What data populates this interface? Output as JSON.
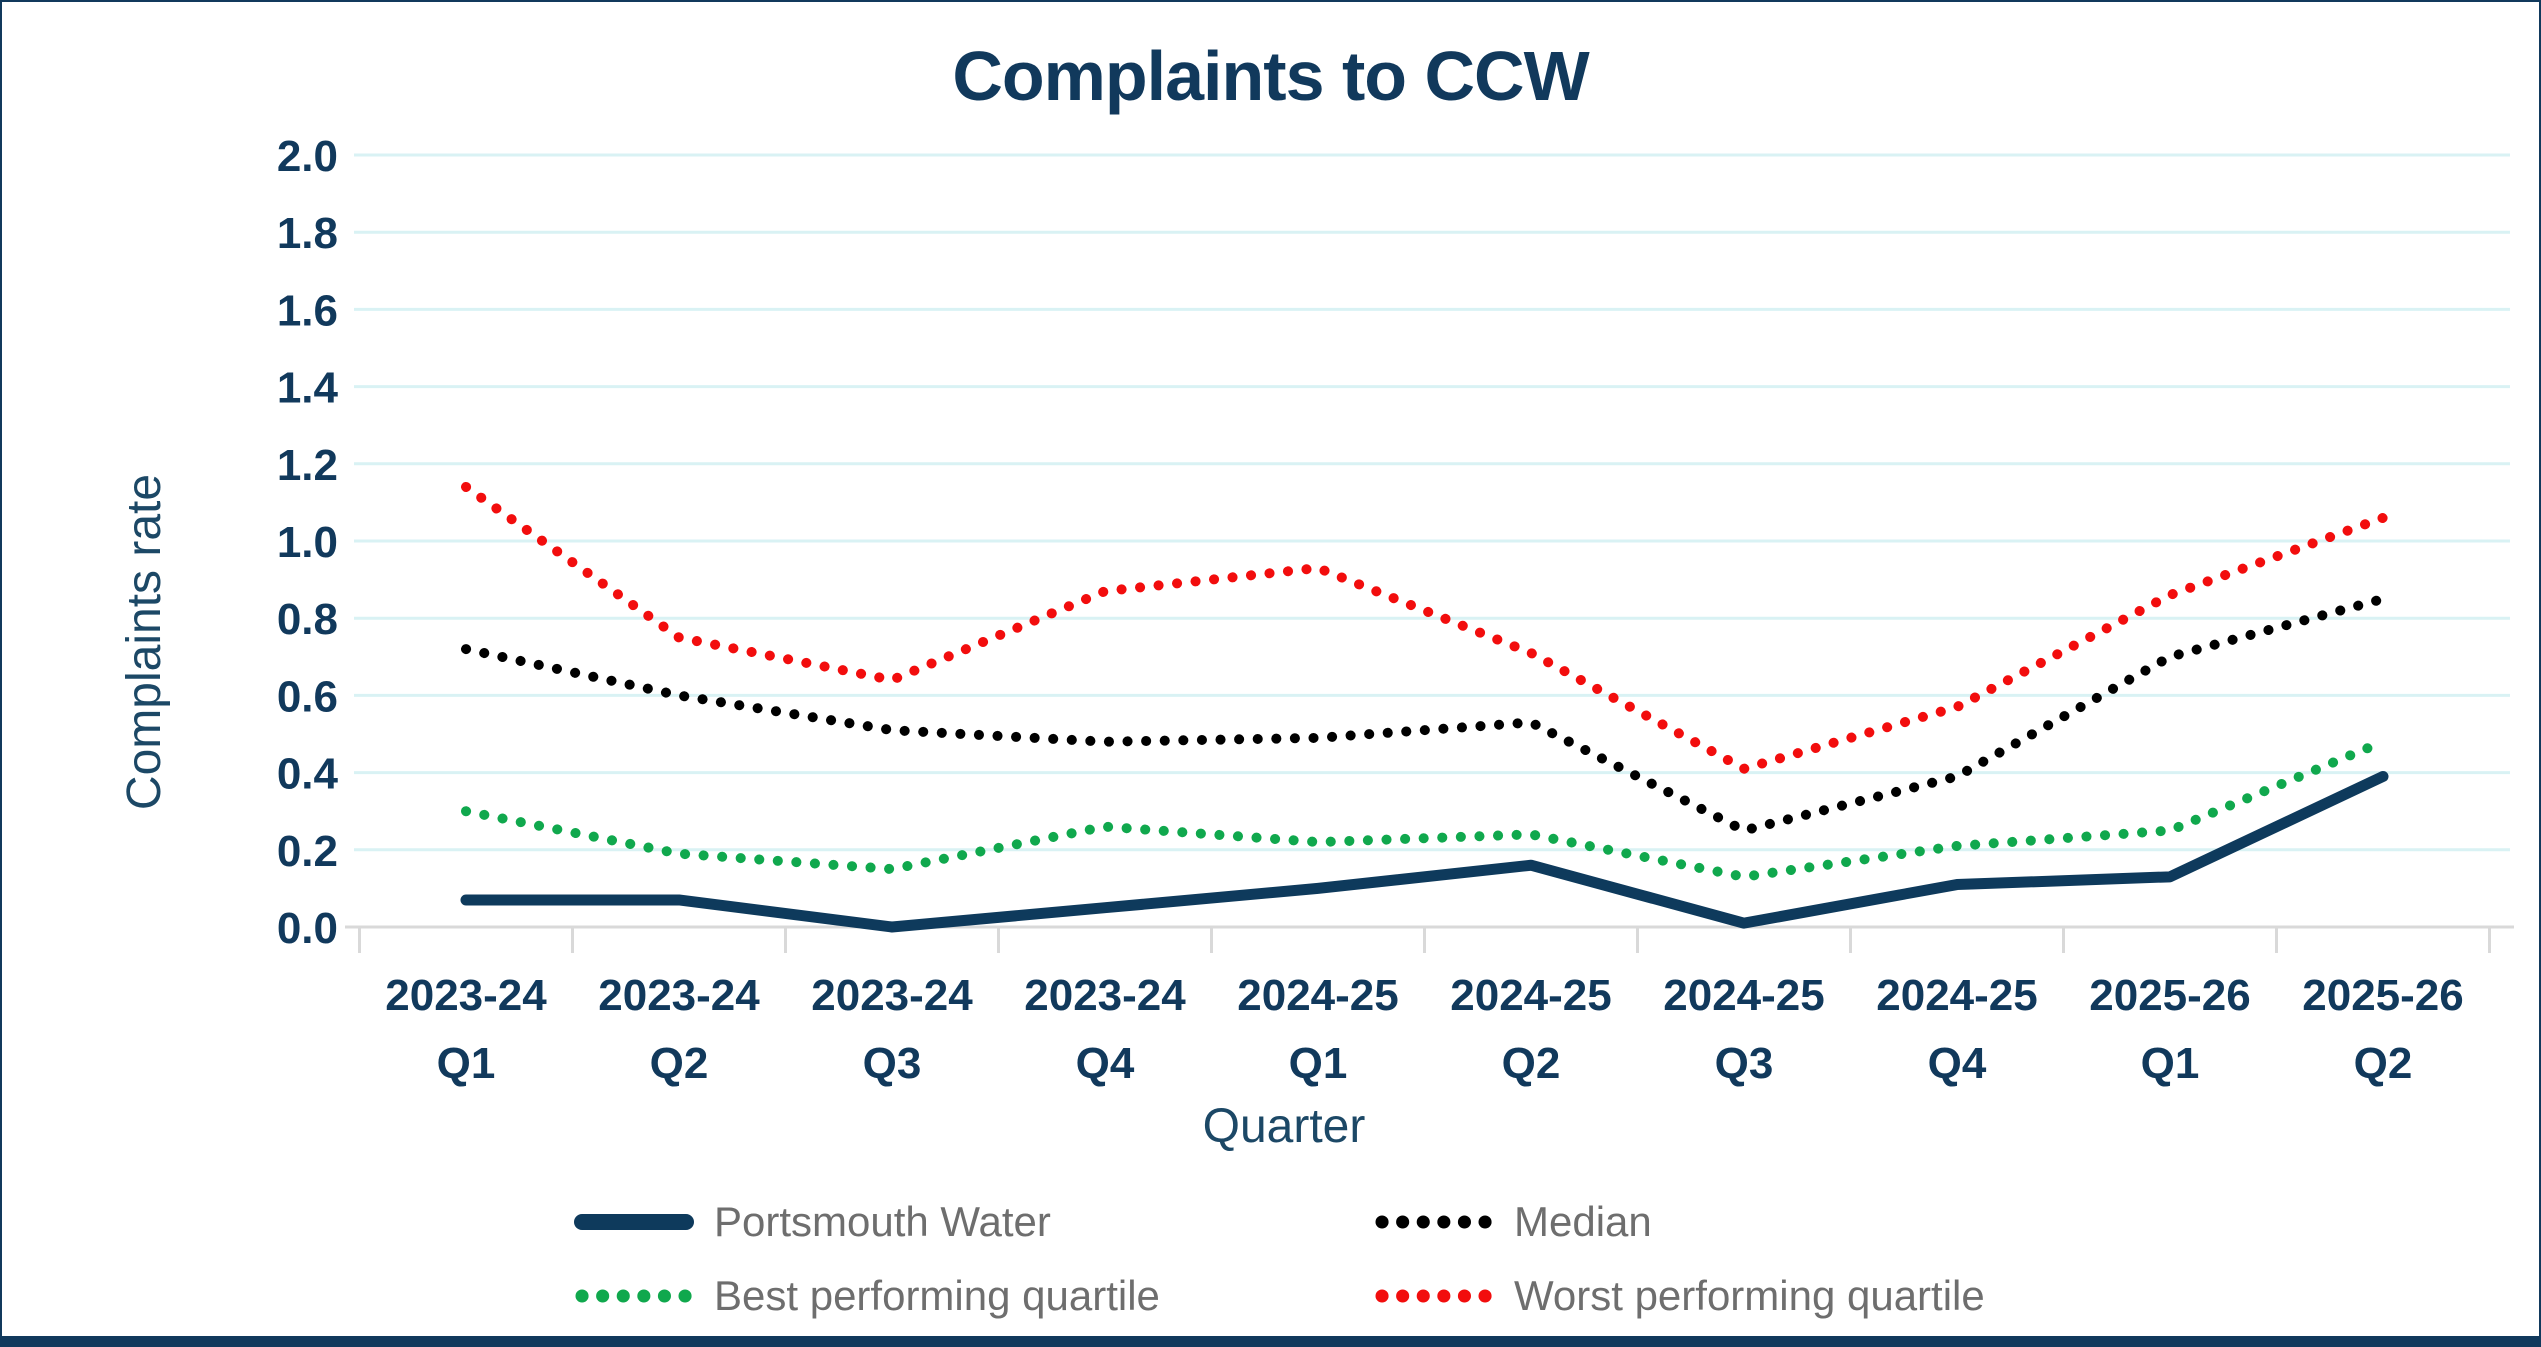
{
  "chart_data": {
    "type": "line",
    "title": "Complaints to CCW",
    "xlabel": "Quarter",
    "ylabel": "Complaints rate",
    "ylim": [
      0,
      2.0
    ],
    "ytick_step": 0.2,
    "ytick_labels": [
      "0.0",
      "0.2",
      "0.4",
      "0.6",
      "0.8",
      "1.0",
      "1.2",
      "1.4",
      "1.6",
      "1.8",
      "2.0"
    ],
    "grid": "horizontal",
    "legend_position": "bottom",
    "categories": [
      "2023-24 Q1",
      "2023-24 Q2",
      "2023-24 Q3",
      "2023-24 Q4",
      "2024-25 Q1",
      "2024-25 Q2",
      "2024-25 Q3",
      "2024-25 Q4",
      "2025-26 Q1",
      "2025-26 Q2"
    ],
    "series": [
      {
        "name": "Portsmouth Water",
        "line_style": "solid",
        "color": "#0e3a5c",
        "values": [
          0.07,
          0.07,
          0.0,
          0.05,
          0.1,
          0.16,
          0.01,
          0.11,
          0.13,
          0.39
        ]
      },
      {
        "name": "Median",
        "line_style": "dotted",
        "color": "#000000",
        "values": [
          0.72,
          0.6,
          0.51,
          0.48,
          0.49,
          0.53,
          0.25,
          0.39,
          0.7,
          0.85
        ]
      },
      {
        "name": "Best performing quartile",
        "line_style": "dotted",
        "color": "#10a84d",
        "values": [
          0.3,
          0.19,
          0.15,
          0.26,
          0.22,
          0.24,
          0.13,
          0.21,
          0.25,
          0.48
        ]
      },
      {
        "name": "Worst performing quartile",
        "line_style": "dotted",
        "color": "#f20d0d",
        "values": [
          1.14,
          0.75,
          0.64,
          0.87,
          0.93,
          0.71,
          0.41,
          0.57,
          0.86,
          1.06
        ]
      }
    ],
    "colors": {
      "title": "#11395c",
      "tick_label": "#11395c",
      "axis_title": "#1c4866",
      "gridline": "#d9f2f4",
      "axis_line": "#d9d9d9",
      "legend_text": "#6e6e6e",
      "background": "#ffffff",
      "frame_border": "#11395c"
    }
  }
}
